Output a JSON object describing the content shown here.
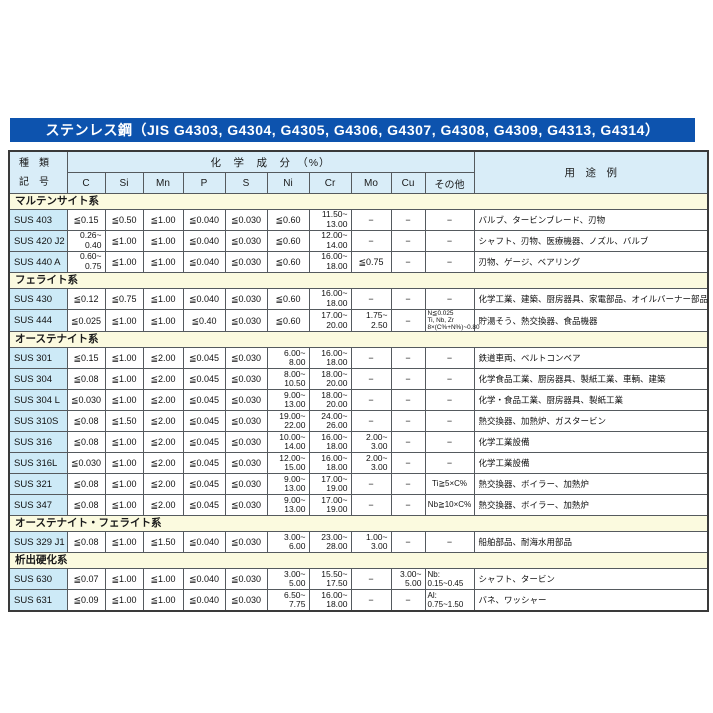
{
  "title": "ステンレス鋼（JIS G4303, G4304, G4305, G4306, G4307, G4308, G4309, G4313, G4314）",
  "colors": {
    "title_bar_bg": "#0d53ae",
    "title_text": "#ffffff",
    "header_bg": "#d9edf8",
    "grade_cell_bg": "#cdeaf7",
    "section_row_bg": "#fbfadf",
    "grid_line": "#555a5e"
  },
  "table": {
    "header": {
      "type_line1": "種　類",
      "type_line2": "記　号",
      "chem_group": "化　学　成　分　（%）",
      "chem_cols": [
        "C",
        "Si",
        "Mn",
        "P",
        "S",
        "Ni",
        "Cr",
        "Mo",
        "Cu",
        "その他"
      ],
      "usage": "用　途　例"
    },
    "sections": [
      {
        "name": "マルテンサイト系",
        "rows": [
          {
            "grade": "SUS 403",
            "c": "≦0.15",
            "si": "≦0.50",
            "mn": "≦1.00",
            "p": "≦0.040",
            "s": "≦0.030",
            "ni": "≦0.60",
            "cr": "11.50~\n13.00",
            "mo": "−",
            "cu": "−",
            "other": "−",
            "usage": "バルブ、タービンブレード、刃物"
          },
          {
            "grade": "SUS 420 J2",
            "c": "0.26~\n0.40",
            "si": "≦1.00",
            "mn": "≦1.00",
            "p": "≦0.040",
            "s": "≦0.030",
            "ni": "≦0.60",
            "cr": "12.00~\n14.00",
            "mo": "−",
            "cu": "−",
            "other": "−",
            "usage": "シャフト、刃物、医療機器、ノズル、バルブ"
          },
          {
            "grade": "SUS 440 A",
            "c": "0.60~\n0.75",
            "si": "≦1.00",
            "mn": "≦1.00",
            "p": "≦0.040",
            "s": "≦0.030",
            "ni": "≦0.60",
            "cr": "16.00~\n18.00",
            "mo": "≦0.75",
            "cu": "−",
            "other": "−",
            "usage": "刃物、ゲージ、ベアリング"
          }
        ]
      },
      {
        "name": "フェライト系",
        "rows": [
          {
            "grade": "SUS 430",
            "c": "≦0.12",
            "si": "≦0.75",
            "mn": "≦1.00",
            "p": "≦0.040",
            "s": "≦0.030",
            "ni": "≦0.60",
            "cr": "16.00~\n18.00",
            "mo": "−",
            "cu": "−",
            "other": "−",
            "usage": "化学工業、建築、厨房器具、家電部品、オイルバーナー部品"
          },
          {
            "grade": "SUS 444",
            "c": "≦0.025",
            "si": "≦1.00",
            "mn": "≦1.00",
            "p": "≦0.40",
            "s": "≦0.030",
            "ni": "≦0.60",
            "cr": "17.00~\n20.00",
            "mo": "1.75~\n2.50",
            "cu": "−",
            "other": "N≦0.025\nTi, Nb, Zr\n8×(C%+N%)~0.80",
            "usage": "貯湯そう、熱交換器、食品機器"
          }
        ]
      },
      {
        "name": "オーステナイト系",
        "rows": [
          {
            "grade": "SUS 301",
            "c": "≦0.15",
            "si": "≦1.00",
            "mn": "≦2.00",
            "p": "≦0.045",
            "s": "≦0.030",
            "ni": "6.00~\n8.00",
            "cr": "16.00~\n18.00",
            "mo": "−",
            "cu": "−",
            "other": "−",
            "usage": "鉄道車両、ベルトコンベア"
          },
          {
            "grade": "SUS 304",
            "c": "≦0.08",
            "si": "≦1.00",
            "mn": "≦2.00",
            "p": "≦0.045",
            "s": "≦0.030",
            "ni": "8.00~\n10.50",
            "cr": "18.00~\n20.00",
            "mo": "−",
            "cu": "−",
            "other": "−",
            "usage": "化学食品工業、厨房器具、製紙工業、車輌、建築"
          },
          {
            "grade": "SUS 304 L",
            "c": "≦0.030",
            "si": "≦1.00",
            "mn": "≦2.00",
            "p": "≦0.045",
            "s": "≦0.030",
            "ni": "9.00~\n13.00",
            "cr": "18.00~\n20.00",
            "mo": "−",
            "cu": "−",
            "other": "−",
            "usage": "化学・食品工業、厨房器具、製紙工業"
          },
          {
            "grade": "SUS 310S",
            "c": "≦0.08",
            "si": "≦1.50",
            "mn": "≦2.00",
            "p": "≦0.045",
            "s": "≦0.030",
            "ni": "19.00~\n22.00",
            "cr": "24.00~\n26.00",
            "mo": "−",
            "cu": "−",
            "other": "−",
            "usage": "熱交換器、加熱炉、ガスタービン"
          },
          {
            "grade": "SUS 316",
            "c": "≦0.08",
            "si": "≦1.00",
            "mn": "≦2.00",
            "p": "≦0.045",
            "s": "≦0.030",
            "ni": "10.00~\n14.00",
            "cr": "16.00~\n18.00",
            "mo": "2.00~\n3.00",
            "cu": "−",
            "other": "−",
            "usage": "化学工業設備"
          },
          {
            "grade": "SUS 316L",
            "c": "≦0.030",
            "si": "≦1.00",
            "mn": "≦2.00",
            "p": "≦0.045",
            "s": "≦0.030",
            "ni": "12.00~\n15.00",
            "cr": "16.00~\n18.00",
            "mo": "2.00~\n3.00",
            "cu": "−",
            "other": "−",
            "usage": "化学工業設備"
          },
          {
            "grade": "SUS 321",
            "c": "≦0.08",
            "si": "≦1.00",
            "mn": "≦2.00",
            "p": "≦0.045",
            "s": "≦0.030",
            "ni": "9.00~\n13.00",
            "cr": "17.00~\n19.00",
            "mo": "−",
            "cu": "−",
            "other": "Ti≧5×C%",
            "usage": "熱交換器、ボイラー、加熱炉"
          },
          {
            "grade": "SUS 347",
            "c": "≦0.08",
            "si": "≦1.00",
            "mn": "≦2.00",
            "p": "≦0.045",
            "s": "≦0.030",
            "ni": "9.00~\n13.00",
            "cr": "17.00~\n19.00",
            "mo": "−",
            "cu": "−",
            "other": "Nb≧10×C%",
            "usage": "熱交換器、ボイラー、加熱炉"
          }
        ]
      },
      {
        "name": "オーステナイト・フェライト系",
        "rows": [
          {
            "grade": "SUS 329 J1",
            "c": "≦0.08",
            "si": "≦1.00",
            "mn": "≦1.50",
            "p": "≦0.040",
            "s": "≦0.030",
            "ni": "3.00~\n6.00",
            "cr": "23.00~\n28.00",
            "mo": "1.00~\n3.00",
            "cu": "−",
            "other": "−",
            "usage": "船舶部品、耐海水用部品"
          }
        ]
      },
      {
        "name": "析出硬化系",
        "rows": [
          {
            "grade": "SUS 630",
            "c": "≦0.07",
            "si": "≦1.00",
            "mn": "≦1.00",
            "p": "≦0.040",
            "s": "≦0.030",
            "ni": "3.00~\n5.00",
            "cr": "15.50~\n17.50",
            "mo": "−",
            "cu": "3.00~\n5.00",
            "other": "Nb:\n0.15~0.45",
            "usage": "シャフト、タービン"
          },
          {
            "grade": "SUS 631",
            "c": "≦0.09",
            "si": "≦1.00",
            "mn": "≦1.00",
            "p": "≦0.040",
            "s": "≦0.030",
            "ni": "6.50~\n7.75",
            "cr": "16.00~\n18.00",
            "mo": "−",
            "cu": "−",
            "other": "Al:\n0.75~1.50",
            "usage": "バネ、ワッシャー"
          }
        ]
      }
    ]
  }
}
